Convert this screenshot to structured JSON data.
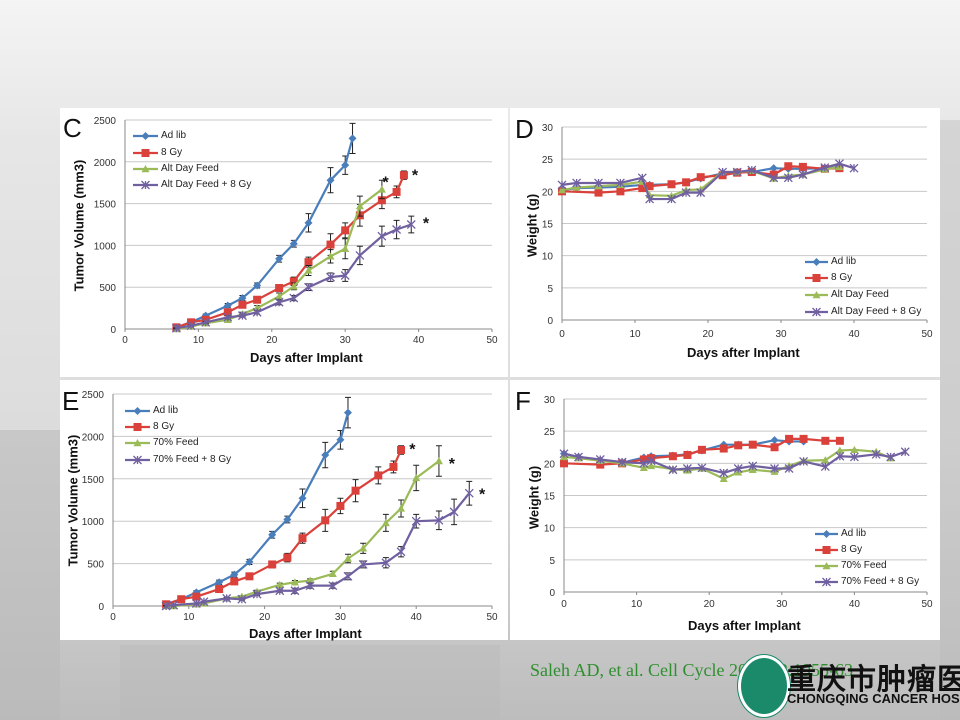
{
  "citation": "Saleh AD, et al. Cell Cycle 2013;12:1955-63",
  "logo": {
    "cn": "重庆市肿瘤医院",
    "en": "CHONGQING CANCER HOSPITAL"
  },
  "chart_data": [
    {
      "panel": "C",
      "type": "line",
      "xlabel": "Days after Implant",
      "ylabel": "Tumor Volume (mm3)",
      "xlim": [
        0,
        50
      ],
      "ylim": [
        0,
        2500
      ],
      "xticks": [
        0,
        10,
        20,
        30,
        40,
        50
      ],
      "yticks": [
        0,
        500,
        1000,
        1500,
        2000,
        2500
      ],
      "grid": true,
      "legend": "top-left",
      "series": [
        {
          "name": "Ad lib",
          "color": "#4a7ebb",
          "marker": "diamond",
          "x": [
            7,
            9,
            11,
            14,
            16,
            18,
            21,
            23,
            25,
            28,
            30,
            31
          ],
          "y": [
            20,
            80,
            160,
            280,
            370,
            520,
            840,
            1020,
            1270,
            1780,
            1960,
            2280
          ],
          "err": [
            10,
            15,
            20,
            25,
            30,
            30,
            40,
            40,
            110,
            150,
            110,
            180
          ]
        },
        {
          "name": "8 Gy",
          "color": "#d9413a",
          "marker": "square",
          "x": [
            7,
            9,
            11,
            14,
            16,
            18,
            21,
            23,
            25,
            28,
            30,
            32,
            35,
            37,
            38
          ],
          "y": [
            20,
            80,
            110,
            200,
            290,
            350,
            490,
            570,
            800,
            1010,
            1180,
            1360,
            1540,
            1640,
            1840
          ],
          "err": [
            10,
            10,
            20,
            20,
            30,
            30,
            40,
            50,
            60,
            130,
            90,
            130,
            100,
            70,
            50
          ]
        },
        {
          "name": "Alt Day Feed",
          "color": "#9bbb59",
          "marker": "triangle",
          "x": [
            7,
            9,
            11,
            14,
            16,
            18,
            21,
            23,
            25,
            28,
            30,
            32,
            35
          ],
          "y": [
            0,
            30,
            70,
            110,
            180,
            250,
            390,
            510,
            700,
            870,
            960,
            1470,
            1670
          ],
          "err": [
            5,
            5,
            10,
            15,
            20,
            30,
            40,
            40,
            60,
            80,
            120,
            120,
            110
          ]
        },
        {
          "name": "Alt Day Feed + 8 Gy",
          "color": "#7060a0",
          "marker": "star",
          "x": [
            7,
            9,
            11,
            14,
            16,
            18,
            21,
            23,
            25,
            28,
            30,
            32,
            35,
            37,
            39
          ],
          "y": [
            10,
            40,
            80,
            140,
            160,
            200,
            320,
            370,
            500,
            620,
            640,
            880,
            1110,
            1190,
            1250
          ],
          "err": [
            5,
            5,
            10,
            20,
            20,
            20,
            30,
            30,
            40,
            50,
            70,
            110,
            120,
            110,
            100
          ]
        }
      ],
      "annotations": [
        {
          "text": "*",
          "x": 35.5,
          "y": 1790
        },
        {
          "text": "*",
          "x": 39.5,
          "y": 1870
        },
        {
          "text": "*",
          "x": 41,
          "y": 1300
        }
      ]
    },
    {
      "panel": "D",
      "type": "line",
      "xlabel": "Days after Implant",
      "ylabel": "Weight (g)",
      "xlim": [
        0,
        50
      ],
      "ylim": [
        0,
        30
      ],
      "xticks": [
        0,
        10,
        20,
        30,
        40,
        50
      ],
      "yticks": [
        0,
        5,
        10,
        15,
        20,
        25,
        30
      ],
      "grid": true,
      "legend": "bottom-right",
      "series": [
        {
          "name": "Ad lib",
          "color": "#4a7ebb",
          "marker": "diamond",
          "x": [
            0,
            2,
            5,
            8,
            11,
            12,
            15,
            17,
            19,
            22,
            24,
            26,
            29,
            31,
            33,
            36,
            38
          ],
          "y": [
            20.2,
            20.5,
            20.6,
            20.7,
            21,
            21,
            21.1,
            21.4,
            22,
            22.8,
            23,
            23,
            23.6,
            23.5,
            23.5,
            23.6,
            23.8
          ]
        },
        {
          "name": "8 Gy",
          "color": "#d9413a",
          "marker": "square",
          "x": [
            0,
            5,
            8,
            11,
            12,
            15,
            17,
            19,
            22,
            24,
            26,
            29,
            31,
            33,
            36,
            38
          ],
          "y": [
            20,
            19.8,
            20,
            20.5,
            20.8,
            21.1,
            21.4,
            22.2,
            22.5,
            22.9,
            23,
            22.6,
            23.9,
            23.8,
            23.5,
            23.6
          ]
        },
        {
          "name": "Alt Day Feed",
          "color": "#9bbb59",
          "marker": "triangle",
          "x": [
            0,
            2,
            5,
            8,
            11,
            12,
            15,
            17,
            19,
            22,
            24,
            26,
            29,
            31,
            33,
            36,
            38
          ],
          "y": [
            20.2,
            20.6,
            20.8,
            21,
            21.5,
            19.4,
            19.3,
            20.2,
            20.3,
            23,
            23,
            23.2,
            22,
            22.4,
            22.6,
            23.4,
            23.8
          ]
        },
        {
          "name": "Alt Day Feed + 8 Gy",
          "color": "#7060a0",
          "marker": "star",
          "x": [
            0,
            2,
            5,
            8,
            11,
            12,
            15,
            17,
            19,
            22,
            24,
            26,
            29,
            31,
            33,
            36,
            38,
            40
          ],
          "y": [
            21,
            21.3,
            21.3,
            21.3,
            22.1,
            18.8,
            18.8,
            19.8,
            19.8,
            23,
            23,
            23.3,
            22.1,
            22.1,
            22.6,
            23.7,
            24.3,
            23.6
          ]
        }
      ]
    },
    {
      "panel": "E",
      "type": "line",
      "xlabel": "Days after Implant",
      "ylabel": "Tumor Volume (mm3)",
      "xlim": [
        0,
        50
      ],
      "ylim": [
        0,
        2500
      ],
      "xticks": [
        0,
        10,
        20,
        30,
        40,
        50
      ],
      "yticks": [
        0,
        500,
        1000,
        1500,
        2000,
        2500
      ],
      "grid": true,
      "legend": "top-left",
      "series": [
        {
          "name": "Ad lib",
          "color": "#4a7ebb",
          "marker": "diamond",
          "x": [
            7,
            9,
            11,
            14,
            16,
            18,
            21,
            23,
            25,
            28,
            30,
            31
          ],
          "y": [
            20,
            80,
            160,
            280,
            370,
            520,
            840,
            1020,
            1270,
            1780,
            1960,
            2280
          ],
          "err": [
            10,
            15,
            20,
            25,
            30,
            30,
            40,
            40,
            110,
            150,
            110,
            180
          ]
        },
        {
          "name": "8 Gy",
          "color": "#d9413a",
          "marker": "square",
          "x": [
            7,
            9,
            11,
            14,
            16,
            18,
            21,
            23,
            25,
            28,
            30,
            32,
            35,
            37,
            38
          ],
          "y": [
            20,
            80,
            110,
            200,
            290,
            350,
            490,
            570,
            800,
            1010,
            1180,
            1360,
            1540,
            1640,
            1840
          ],
          "err": [
            10,
            10,
            20,
            20,
            30,
            30,
            40,
            50,
            60,
            130,
            90,
            130,
            100,
            70,
            50
          ]
        },
        {
          "name": "70%  Feed",
          "color": "#9bbb59",
          "marker": "triangle",
          "x": [
            7,
            8,
            11,
            12,
            15,
            17,
            19,
            22,
            24,
            26,
            29,
            31,
            33,
            36,
            38,
            40,
            43
          ],
          "y": [
            0,
            0,
            20,
            30,
            90,
            110,
            170,
            250,
            280,
            300,
            380,
            560,
            680,
            980,
            1150,
            1510,
            1710
          ],
          "err": [
            5,
            5,
            5,
            5,
            10,
            10,
            15,
            20,
            20,
            20,
            30,
            50,
            60,
            100,
            100,
            150,
            180
          ]
        },
        {
          "name": "70% Feed + 8 Gy",
          "color": "#7060a0",
          "marker": "star",
          "x": [
            7,
            8,
            11,
            12,
            15,
            17,
            19,
            22,
            24,
            26,
            29,
            31,
            33,
            36,
            38,
            40,
            43,
            45,
            47
          ],
          "y": [
            0,
            10,
            30,
            50,
            90,
            80,
            140,
            180,
            180,
            240,
            240,
            350,
            490,
            510,
            640,
            1000,
            1010,
            1110,
            1330
          ],
          "err": [
            5,
            5,
            5,
            5,
            10,
            10,
            15,
            20,
            30,
            30,
            30,
            40,
            40,
            60,
            60,
            80,
            110,
            150,
            140
          ]
        }
      ],
      "annotations": [
        {
          "text": "*",
          "x": 39.5,
          "y": 1880
        },
        {
          "text": "*",
          "x": 44.7,
          "y": 1710
        },
        {
          "text": "*",
          "x": 48.7,
          "y": 1350
        }
      ]
    },
    {
      "panel": "F",
      "type": "line",
      "xlabel": "Days after Implant",
      "ylabel": "Weight (g)",
      "xlim": [
        0,
        50
      ],
      "ylim": [
        0,
        30
      ],
      "xticks": [
        0,
        10,
        20,
        30,
        40,
        50
      ],
      "yticks": [
        0,
        5,
        10,
        15,
        20,
        25,
        30
      ],
      "grid": true,
      "legend": "bottom-right",
      "series": [
        {
          "name": "Ad lib",
          "color": "#4a7ebb",
          "marker": "diamond",
          "x": [
            0,
            2,
            5,
            8,
            11,
            12,
            15,
            17,
            19,
            22,
            24,
            26,
            29,
            31,
            33
          ],
          "y": [
            21.5,
            21,
            20.5,
            20.1,
            20.9,
            21.1,
            21.2,
            21.4,
            22,
            22.9,
            22.9,
            22.9,
            23.6,
            23.4,
            23.4
          ]
        },
        {
          "name": "8 Gy",
          "color": "#d9413a",
          "marker": "square",
          "x": [
            0,
            5,
            8,
            11,
            12,
            15,
            17,
            19,
            22,
            24,
            26,
            29,
            31,
            33,
            36,
            38
          ],
          "y": [
            20,
            19.8,
            20,
            20.6,
            20.8,
            21.1,
            21.3,
            22.1,
            22.3,
            22.8,
            22.9,
            22.5,
            23.8,
            23.8,
            23.5,
            23.5
          ]
        },
        {
          "name": "70% Feed",
          "color": "#9bbb59",
          "marker": "triangle",
          "x": [
            0,
            2,
            5,
            8,
            11,
            12,
            15,
            17,
            19,
            22,
            24,
            26,
            29,
            31,
            33,
            36,
            38,
            40,
            43,
            45
          ],
          "y": [
            21,
            20.8,
            20.4,
            20,
            19.3,
            19.6,
            19.1,
            18.9,
            19.2,
            17.6,
            18.6,
            19,
            18.7,
            19.6,
            20.4,
            20.5,
            22,
            22.1,
            21.8,
            20.8
          ]
        },
        {
          "name": "70% Feed + 8 Gy",
          "color": "#7060a0",
          "marker": "star",
          "x": [
            0,
            2,
            5,
            8,
            11,
            12,
            15,
            17,
            19,
            22,
            24,
            26,
            29,
            31,
            33,
            36,
            38,
            40,
            43,
            45,
            47
          ],
          "y": [
            21.5,
            21,
            20.6,
            20.2,
            20,
            20.4,
            19,
            19.2,
            19.3,
            18.5,
            19.2,
            19.6,
            19.2,
            19.2,
            20.3,
            19.5,
            21.1,
            21,
            21.4,
            21,
            21.8
          ]
        }
      ]
    }
  ]
}
